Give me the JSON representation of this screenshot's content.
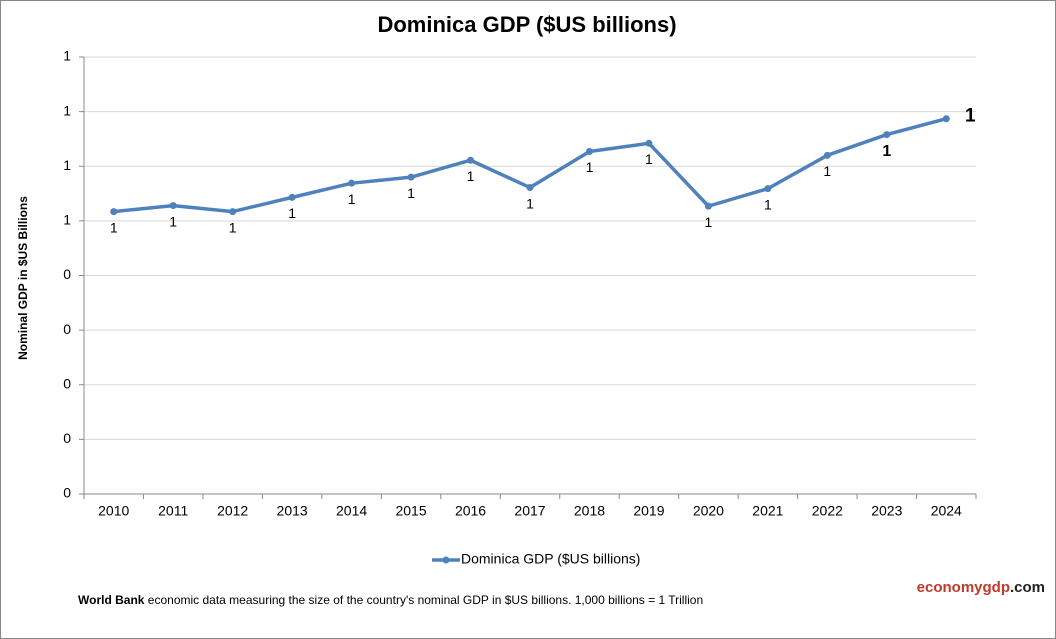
{
  "chart_data": {
    "type": "line",
    "title": "Dominica GDP ($US billions)",
    "y_label": "Nominal GDP in $US Billions",
    "categories": [
      "2010",
      "2011",
      "2012",
      "2013",
      "2014",
      "2015",
      "2016",
      "2017",
      "2018",
      "2019",
      "2020",
      "2021",
      "2022",
      "2023",
      "2024"
    ],
    "series": [
      {
        "name": "Dominica GDP ($US billions)",
        "color": "#4f81bd",
        "values": [
          0.517,
          0.528,
          0.517,
          0.543,
          0.569,
          0.58,
          0.611,
          0.561,
          0.627,
          0.642,
          0.527,
          0.559,
          0.62,
          0.658,
          0.687
        ],
        "value_labels": [
          "1",
          "1",
          "1",
          "1",
          "1",
          "1",
          "1",
          "1",
          "1",
          "1",
          "1",
          "1",
          "1",
          "1",
          "1"
        ]
      }
    ],
    "ylim": [
      0,
      0.8
    ],
    "yticks": [
      0,
      {
        "value": 0.1,
        "label": "0"
      },
      {
        "value": 0.2,
        "label": "0"
      },
      {
        "value": 0.3,
        "label": "0"
      },
      {
        "value": 0.4,
        "label": "0"
      },
      {
        "value": 0.5,
        "label": "1"
      },
      {
        "value": 0.6,
        "label": "1"
      },
      {
        "value": 0.7,
        "label": "1"
      },
      {
        "value": 0.8,
        "label": "1"
      }
    ],
    "grid": true,
    "legend": "bottom",
    "footnote_bold": "World Bank",
    "footnote": "economic data  measuring the size of the country's nominal GDP in $US billions. 1,000 billions = 1 Trillion",
    "brand": [
      "economygdp",
      ".com"
    ]
  }
}
